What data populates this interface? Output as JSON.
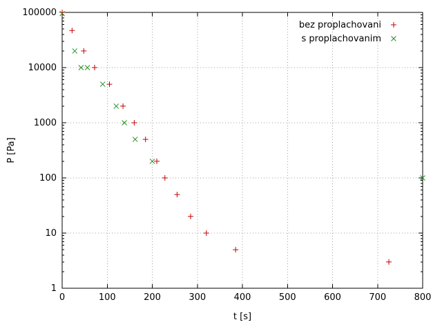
{
  "page": {
    "background": "#ffffff"
  },
  "chart_data": {
    "type": "scatter",
    "title": "",
    "xlabel": "t [s]",
    "ylabel": "P [Pa]",
    "xlim": [
      0,
      800
    ],
    "ylim": [
      1,
      100000
    ],
    "x_scale": "linear",
    "y_scale": "log",
    "x_ticks": [
      0,
      100,
      200,
      300,
      400,
      500,
      600,
      700,
      800
    ],
    "y_ticks": [
      1,
      10,
      100,
      1000,
      10000,
      100000
    ],
    "grid": true,
    "grid_color": "#a0a0a0",
    "axis_color": "#000000",
    "legend_position": "top-right",
    "series": [
      {
        "name": "bez proplachovani",
        "marker": "plus",
        "color": "#c00000",
        "points": [
          [
            0,
            100000
          ],
          [
            22,
            47000
          ],
          [
            48,
            20000
          ],
          [
            72,
            10000
          ],
          [
            105,
            5000
          ],
          [
            135,
            2000
          ],
          [
            160,
            1000
          ],
          [
            185,
            500
          ],
          [
            210,
            200
          ],
          [
            228,
            100
          ],
          [
            255,
            50
          ],
          [
            285,
            20
          ],
          [
            320,
            10
          ],
          [
            385,
            5
          ],
          [
            725,
            3
          ]
        ]
      },
      {
        "name": "s proplachovanim",
        "marker": "x",
        "color": "#228b22",
        "points": [
          [
            0,
            95000
          ],
          [
            28,
            20000
          ],
          [
            42,
            10000
          ],
          [
            56,
            10000
          ],
          [
            90,
            5000
          ],
          [
            120,
            2000
          ],
          [
            138,
            1000
          ],
          [
            162,
            500
          ],
          [
            200,
            200
          ],
          [
            800,
            100
          ]
        ]
      }
    ]
  }
}
